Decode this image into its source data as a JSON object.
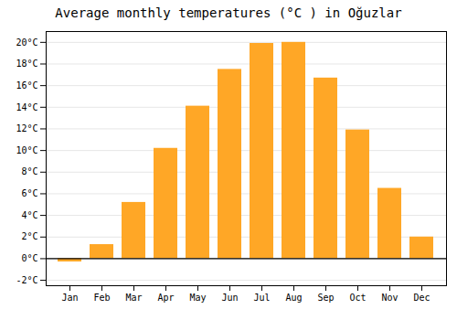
{
  "chart_data": {
    "type": "bar",
    "title": "Average monthly temperatures (°C ) in Oğuzlar",
    "categories": [
      "Jan",
      "Feb",
      "Mar",
      "Apr",
      "May",
      "Jun",
      "Jul",
      "Aug",
      "Sep",
      "Oct",
      "Nov",
      "Dec"
    ],
    "values": [
      -0.3,
      1.3,
      5.2,
      10.2,
      14.1,
      17.5,
      19.9,
      20.0,
      16.7,
      11.9,
      6.5,
      2.0
    ],
    "color": "#FFA726",
    "ylim": [
      -2.5,
      21
    ],
    "yticks": [
      {
        "value": -2,
        "label": "-2°C"
      },
      {
        "value": 0,
        "label": "0°C"
      },
      {
        "value": 2,
        "label": "2°C"
      },
      {
        "value": 4,
        "label": "4°C"
      },
      {
        "value": 6,
        "label": "6°C"
      },
      {
        "value": 8,
        "label": "8°C"
      },
      {
        "value": 10,
        "label": "10°C"
      },
      {
        "value": 12,
        "label": "12°C"
      },
      {
        "value": 14,
        "label": "14°C"
      },
      {
        "value": 16,
        "label": "16°C"
      },
      {
        "value": 18,
        "label": "18°C"
      },
      {
        "value": 20,
        "label": "20°C"
      }
    ],
    "grid": true
  }
}
